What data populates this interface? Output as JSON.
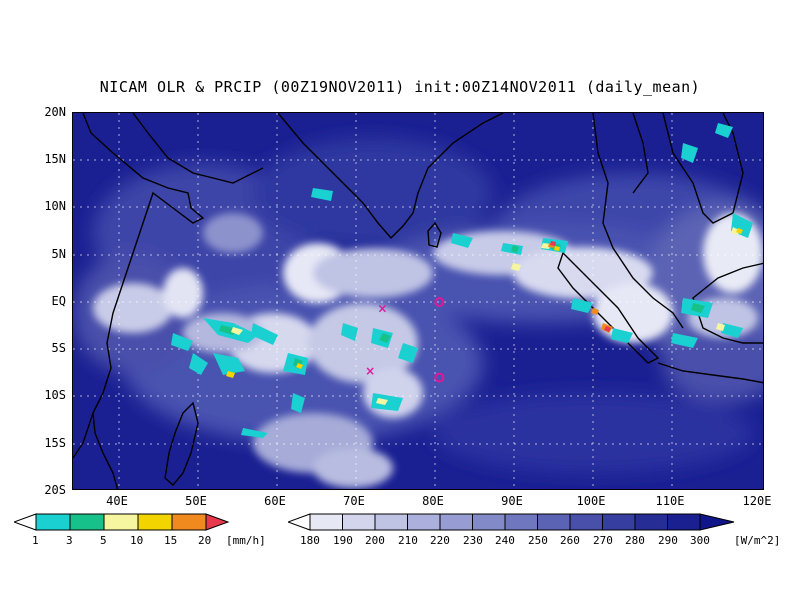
{
  "title": "NICAM OLR & PRCIP (00Z19NOV2011) init:00Z14NOV2011 (daily_mean)",
  "lat_labels": [
    "20N",
    "15N",
    "10N",
    "5N",
    "EQ",
    "5S",
    "10S",
    "15S",
    "20S"
  ],
  "lon_labels": [
    "40E",
    "50E",
    "60E",
    "70E",
    "80E",
    "90E",
    "100E",
    "110E",
    "120E"
  ],
  "precip_legend": {
    "labels": [
      "1",
      "3",
      "5",
      "10",
      "15",
      "20"
    ],
    "units": "[mm/h]",
    "colors": [
      "#ffffff",
      "#1ad0d0",
      "#17c28a",
      "#f6f6a0",
      "#f2d400",
      "#f08a1e",
      "#e8384c"
    ]
  },
  "olr_legend": {
    "labels": [
      "180",
      "190",
      "200",
      "210",
      "220",
      "230",
      "240",
      "250",
      "260",
      "270",
      "280",
      "290",
      "300"
    ],
    "units": "[W/m^2]",
    "colors": [
      "#ffffff",
      "#e6e8f4",
      "#d2d5ec",
      "#bfc3e4",
      "#abb0dc",
      "#979dd2",
      "#838ac8",
      "#6f77be",
      "#5b63b4",
      "#4850aa",
      "#363ea0",
      "#262e96",
      "#1a2090",
      "#11158a"
    ]
  },
  "markers": [
    {
      "type": "x",
      "lon": 73,
      "lat": -0.7,
      "color": "#e0189a"
    },
    {
      "type": "x",
      "lon": 71.5,
      "lat": -7.3,
      "color": "#e0189a"
    },
    {
      "type": "o",
      "lon": 80,
      "lat": 0,
      "color": "#e0189a"
    },
    {
      "type": "o",
      "lon": 80,
      "lat": -8,
      "color": "#e0189a"
    }
  ]
}
